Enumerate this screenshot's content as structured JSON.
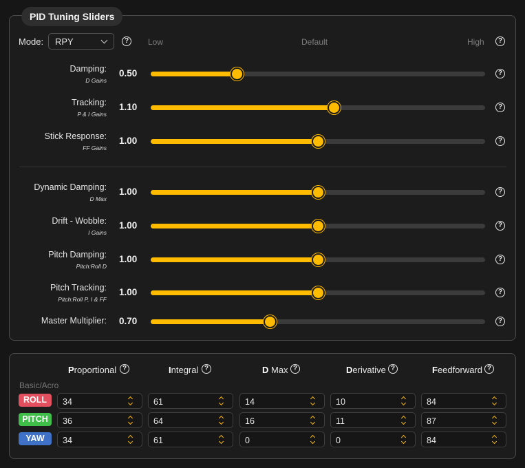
{
  "panel_title": "PID Tuning Sliders",
  "mode": {
    "label": "Mode:",
    "value": "RPY"
  },
  "scale": {
    "low": "Low",
    "default": "Default",
    "high": "High"
  },
  "sliders": [
    {
      "label": "Damping:",
      "sub": "D Gains",
      "value": "0.50",
      "level": 0.257
    },
    {
      "label": "Tracking:",
      "sub": "P & I Gains",
      "value": "1.10",
      "level": 0.547
    },
    {
      "label": "Stick Response:",
      "sub": "FF Gains",
      "value": "1.00",
      "level": 0.5
    },
    {
      "label": "Dynamic Damping:",
      "sub": "D Max",
      "value": "1.00",
      "level": 0.5
    },
    {
      "label": "Drift - Wobble:",
      "sub": "I Gains",
      "value": "1.00",
      "level": 0.5
    },
    {
      "label": "Pitch Damping:",
      "sub": "Pitch:Roll D",
      "value": "1.00",
      "level": 0.5
    },
    {
      "label": "Pitch Tracking:",
      "sub": "Pitch:Roll P, I & FF",
      "value": "1.00",
      "level": 0.5
    },
    {
      "label": "Master Multiplier:",
      "sub": "",
      "value": "0.70",
      "level": 0.355
    }
  ],
  "table": {
    "group_label": "Basic/Acro",
    "columns": [
      {
        "first": "P",
        "rest": "roportional"
      },
      {
        "first": "I",
        "rest": "ntegral"
      },
      {
        "first": "D",
        "rest": " Max"
      },
      {
        "first": "D",
        "rest": "erivative"
      },
      {
        "first": "F",
        "rest": "eedforward"
      }
    ],
    "rows": [
      {
        "axis": "ROLL",
        "color": "#e2505f",
        "values": [
          "34",
          "61",
          "14",
          "10",
          "84"
        ]
      },
      {
        "axis": "PITCH",
        "color": "#3fbf4a",
        "values": [
          "36",
          "64",
          "16",
          "11",
          "87"
        ]
      },
      {
        "axis": "YAW",
        "color": "#3f72c7",
        "values": [
          "34",
          "61",
          "0",
          "0",
          "84"
        ]
      }
    ]
  },
  "colors": {
    "accent": "#ffbb00",
    "track": "#3b3b3b"
  },
  "icons": {
    "help": "question-circle-icon",
    "dropdown": "chevron-down-icon",
    "spinner": "stepper-arrows-icon"
  }
}
